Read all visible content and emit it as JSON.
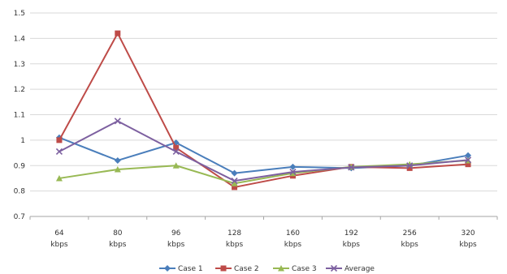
{
  "chart_data": {
    "type": "line",
    "categories": [
      [
        "64",
        "kbps"
      ],
      [
        "80",
        "kbps"
      ],
      [
        "96",
        "kbps"
      ],
      [
        "128",
        "kbps"
      ],
      [
        "160",
        "kbps"
      ],
      [
        "192",
        "kbps"
      ],
      [
        "256",
        "kbps"
      ],
      [
        "320",
        "kbps"
      ]
    ],
    "ylim": [
      0.7,
      1.5
    ],
    "yticks": [
      "0.7",
      "0.8",
      "0.9",
      "1",
      "1.1",
      "1.2",
      "1.3",
      "1.4",
      "1.5"
    ],
    "grid": "horizontal",
    "legend_position": "bottom",
    "series": [
      {
        "name": "Case 1",
        "color": "#4a7ebb",
        "marker": "diamond",
        "values": [
          1.01,
          0.92,
          0.99,
          0.87,
          0.895,
          0.89,
          0.9,
          0.94
        ]
      },
      {
        "name": "Case 2",
        "color": "#be4b48",
        "marker": "square",
        "values": [
          1.0,
          1.42,
          0.97,
          0.815,
          0.86,
          0.895,
          0.89,
          0.905
        ]
      },
      {
        "name": "Case 3",
        "color": "#98b954",
        "marker": "triangle",
        "values": [
          0.85,
          0.885,
          0.9,
          0.83,
          0.87,
          0.895,
          0.905,
          0.92
        ]
      },
      {
        "name": "Average",
        "color": "#7d60a0",
        "marker": "x",
        "values": [
          0.955,
          1.075,
          0.955,
          0.84,
          0.875,
          0.893,
          0.9,
          0.922
        ]
      }
    ]
  }
}
